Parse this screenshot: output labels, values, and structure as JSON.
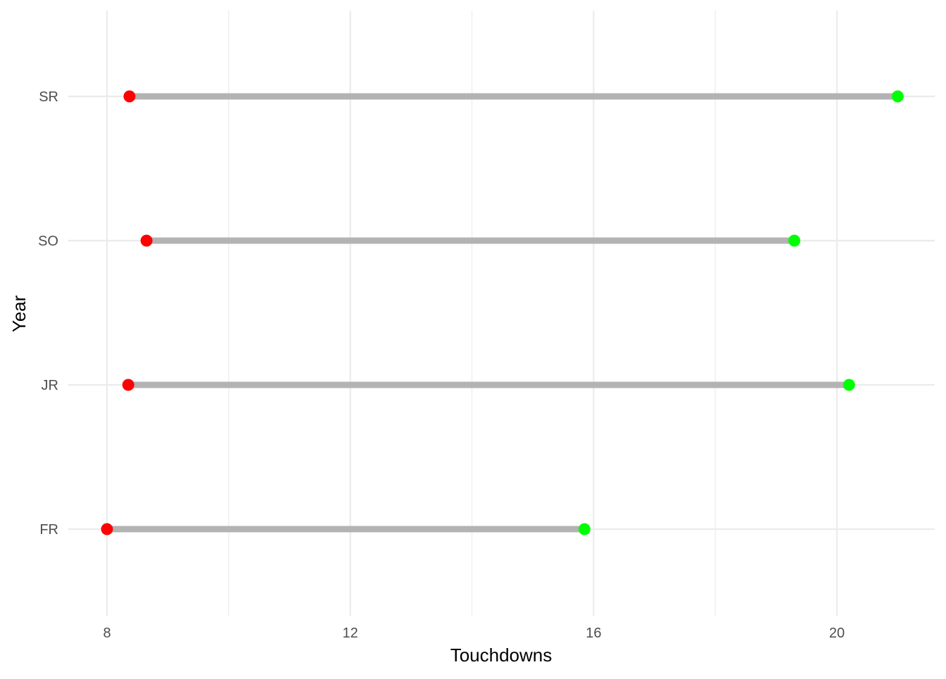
{
  "chart_data": {
    "type": "dumbbell",
    "xlabel": "Touchdowns",
    "ylabel": "Year",
    "xlim": [
      7.9,
      21.6
    ],
    "x_ticks": [
      8,
      12,
      16,
      20
    ],
    "x_minor_ticks": [
      10,
      14,
      18
    ],
    "grid": true,
    "categories": [
      "FR",
      "JR",
      "SO",
      "SR"
    ],
    "series": [
      {
        "color": "#FF0000",
        "values": [
          8.0,
          8.35,
          8.65,
          8.37
        ]
      },
      {
        "color": "#00FF00",
        "values": [
          15.85,
          20.2,
          19.3,
          21.0
        ]
      }
    ],
    "segment_color": "#B3B3B3",
    "grid_color": "#EBEBEB"
  }
}
